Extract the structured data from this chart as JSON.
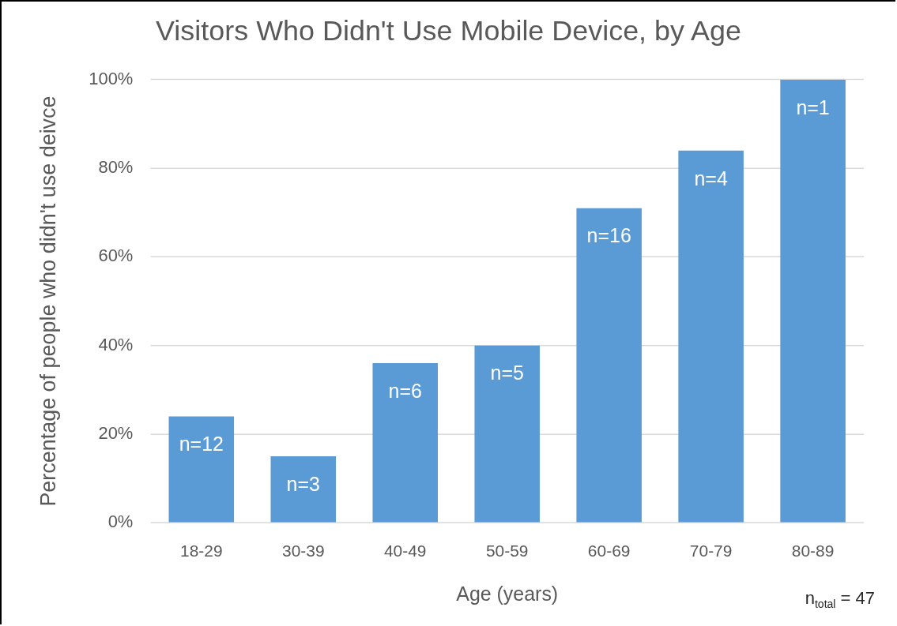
{
  "chart_data": {
    "type": "bar",
    "title": "Visitors Who Didn't Use Mobile Device, by Age",
    "xlabel": "Age (years)",
    "ylabel": "Percentage of people who didn't use deivce",
    "categories": [
      "18-29",
      "30-39",
      "40-49",
      "50-59",
      "60-69",
      "70-79",
      "80-89"
    ],
    "values": [
      24,
      15,
      36,
      40,
      71,
      84,
      100
    ],
    "color": "#5b9bd5",
    "ylim": [
      0,
      100
    ],
    "yticks": [
      {
        "value": 0,
        "label": "0%"
      },
      {
        "value": 20,
        "label": "20%"
      },
      {
        "value": 40,
        "label": "40%"
      },
      {
        "value": 60,
        "label": "60%"
      },
      {
        "value": 80,
        "label": "80%"
      },
      {
        "value": 100,
        "label": "100%"
      }
    ],
    "grid": "y",
    "annotations": [
      {
        "text": "n=12",
        "x": "18-29",
        "y": 24
      },
      {
        "text": "n=3",
        "x": "30-39",
        "y": 15
      },
      {
        "text": "n=6",
        "x": "40-49",
        "y": 36
      },
      {
        "text": "n=5",
        "x": "50-59",
        "y": 40
      },
      {
        "text": "n=16",
        "x": "60-69",
        "y": 71
      },
      {
        "text": "n=4",
        "x": "70-79",
        "y": 84
      },
      {
        "text": "n=1",
        "x": "80-89",
        "y": 100
      },
      "n$_{total}$ = 47"
    ]
  }
}
